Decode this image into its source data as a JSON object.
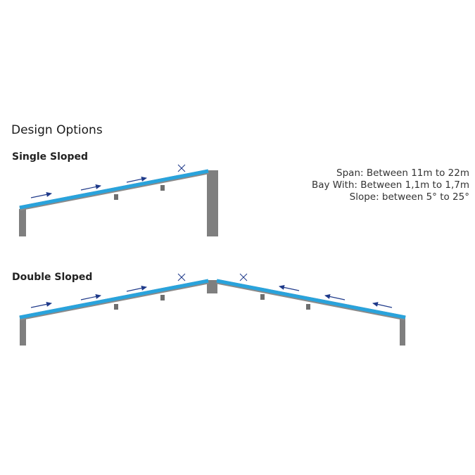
{
  "title": "Design Options",
  "single": {
    "label": "Single Sloped"
  },
  "double": {
    "label": "Double Sloped"
  },
  "specs": {
    "span": "Span: Between 11m to 22m",
    "bay": "Bay With: Between 1,1m to 1,7m",
    "slope": "Slope: between 5° to 25°"
  },
  "colors": {
    "panel": "#29a3dc",
    "structure": "#7f7f7f",
    "arrow": "#1f3a8a"
  }
}
